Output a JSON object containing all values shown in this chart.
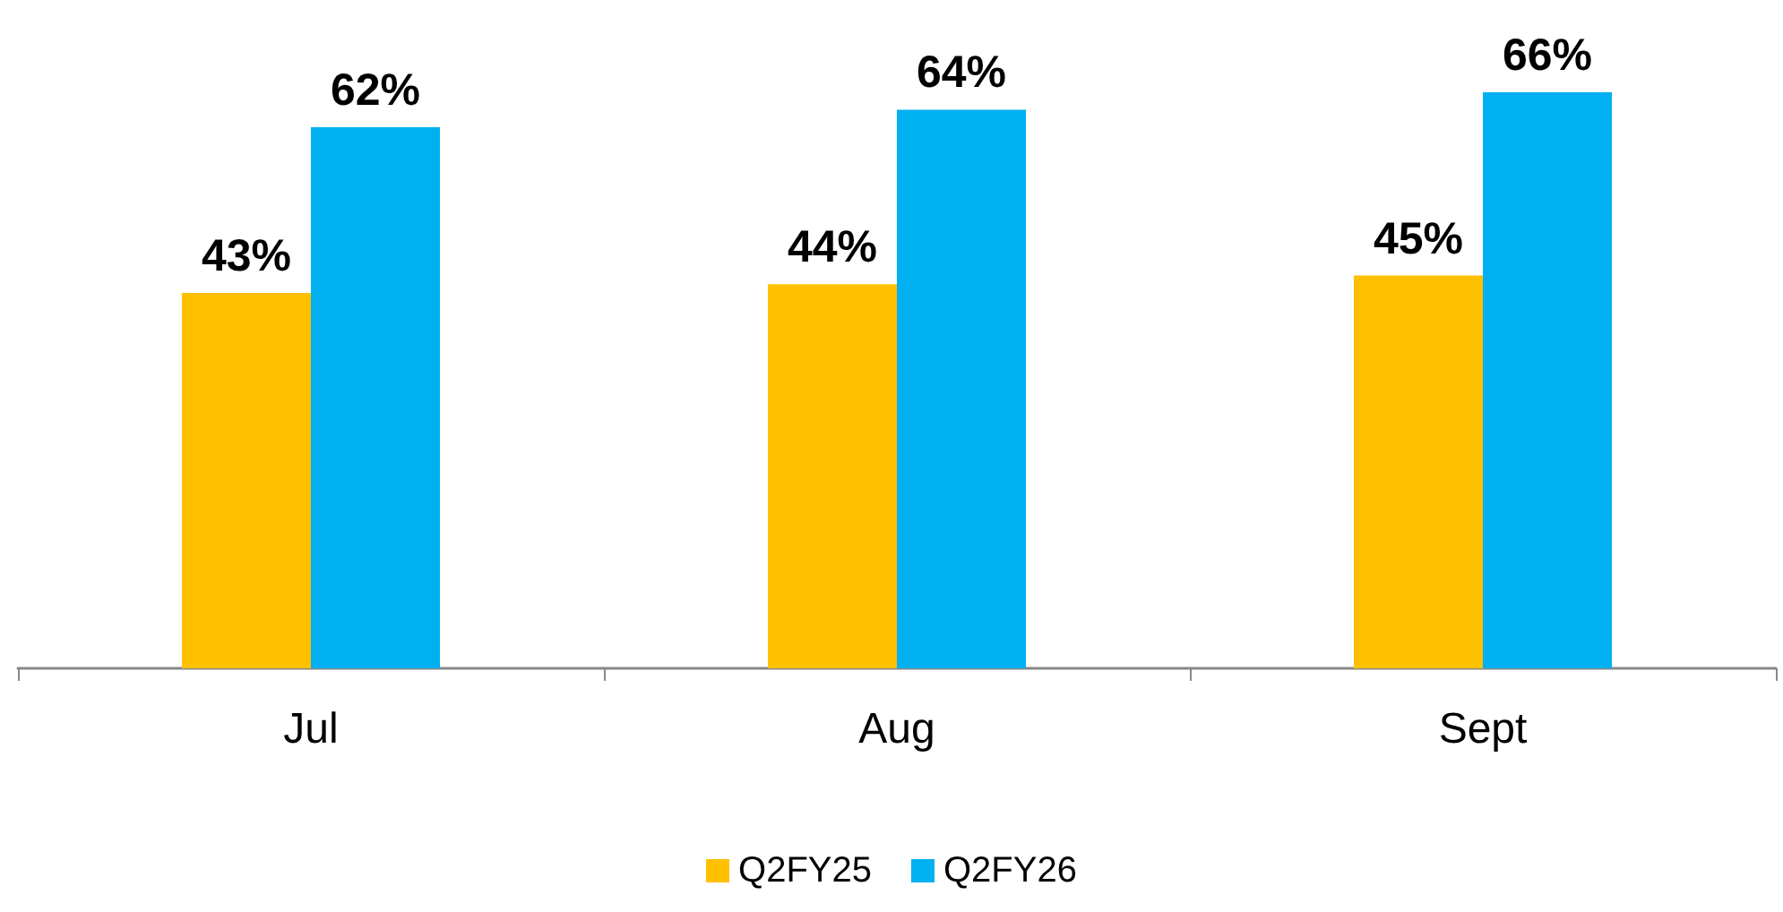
{
  "chart_data": {
    "type": "bar",
    "categories": [
      "Jul",
      "Aug",
      "Sept"
    ],
    "series": [
      {
        "name": "Q2FY25",
        "color": "#ffc000",
        "values": [
          43,
          44,
          45
        ],
        "value_labels": [
          "43%",
          "44%",
          "45%"
        ]
      },
      {
        "name": "Q2FY26",
        "color": "#00b0f0",
        "values": [
          62,
          64,
          66
        ],
        "value_labels": [
          "62%",
          "64%",
          "66%"
        ]
      }
    ],
    "legend": "bottom"
  }
}
